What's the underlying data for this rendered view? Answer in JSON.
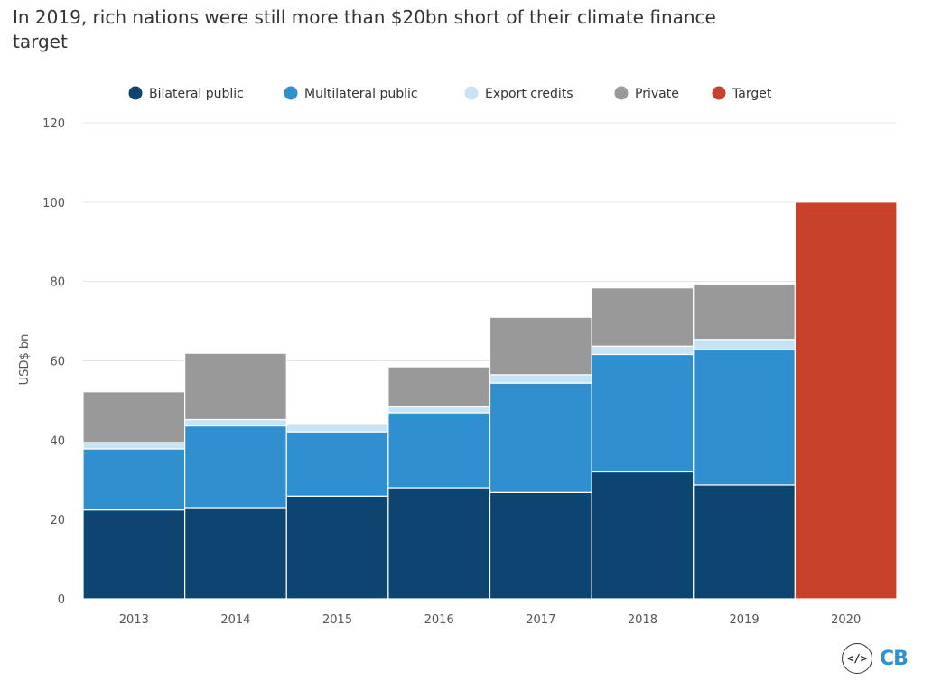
{
  "title": "In 2019, rich nations were still more than $20bn short of their climate finance target",
  "logo_text": "CB",
  "embed_icon_text": "</>",
  "chart_data": {
    "type": "bar",
    "stacked": true,
    "categories": [
      "2013",
      "2014",
      "2015",
      "2016",
      "2017",
      "2018",
      "2019",
      "2020"
    ],
    "series": [
      {
        "name": "Bilateral public",
        "color": "#0b4570",
        "values": [
          22.4,
          23.0,
          25.9,
          28.0,
          26.8,
          32.0,
          28.7,
          0
        ]
      },
      {
        "name": "Multilateral public",
        "color": "#2f8fcf",
        "values": [
          15.4,
          20.6,
          16.2,
          18.9,
          27.6,
          29.6,
          34.1,
          0
        ]
      },
      {
        "name": "Export credits",
        "color": "#c7e3f6",
        "values": [
          1.6,
          1.6,
          2.1,
          1.5,
          2.1,
          2.1,
          2.6,
          0
        ]
      },
      {
        "name": "Private",
        "color": "#999999",
        "values": [
          12.8,
          16.7,
          0,
          10.1,
          14.5,
          14.7,
          14.0,
          0
        ]
      },
      {
        "name": "Target",
        "color": "#c8412b",
        "values": [
          0,
          0,
          0,
          0,
          0,
          0,
          0,
          100
        ]
      }
    ],
    "ylabel": "USD$ bn",
    "ylim": [
      0,
      120
    ],
    "yticks": [
      0,
      20,
      40,
      60,
      80,
      100,
      120
    ],
    "grid": true,
    "legend_position": "top"
  }
}
